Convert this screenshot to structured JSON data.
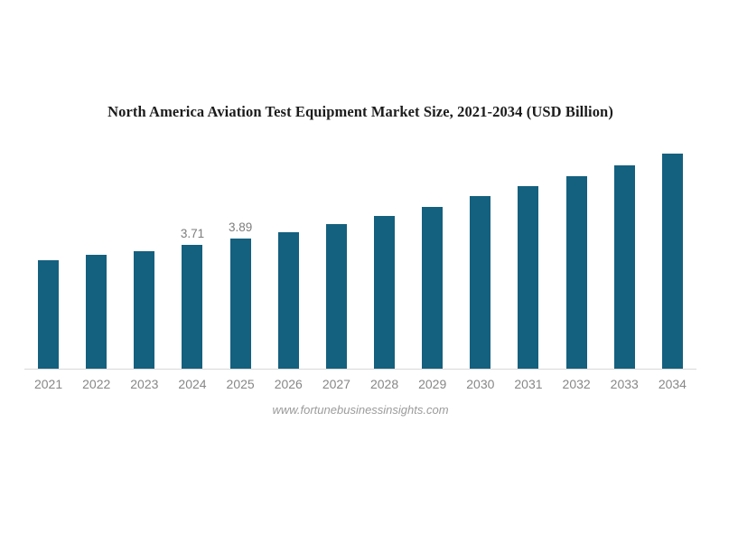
{
  "page": {
    "background": "#ffffff"
  },
  "chart_data": {
    "type": "bar",
    "title": "North America Aviation Test Equipment Market Size, 2021-2034 (USD Billion)",
    "categories": [
      "2021",
      "2022",
      "2023",
      "2024",
      "2025",
      "2026",
      "2027",
      "2028",
      "2029",
      "2030",
      "2031",
      "2032",
      "2033",
      "2034"
    ],
    "values": [
      3.23,
      3.4,
      3.52,
      3.71,
      3.89,
      4.09,
      4.32,
      4.56,
      4.84,
      5.16,
      5.47,
      5.77,
      6.08,
      6.42
    ],
    "data_labels": {
      "2024": "3.71",
      "2025": "3.89"
    },
    "xlabel": "",
    "ylabel": "",
    "ylim": [
      0,
      6.6
    ],
    "grid": false,
    "legend": null,
    "y_axis_visible": false,
    "bar_color": "#14607f",
    "value_label_color": "#7d7d7d",
    "tick_label_color": "#878787",
    "axis_line_color": "#d8d8d8",
    "source": "www.fortunebusinessinsights.com"
  }
}
